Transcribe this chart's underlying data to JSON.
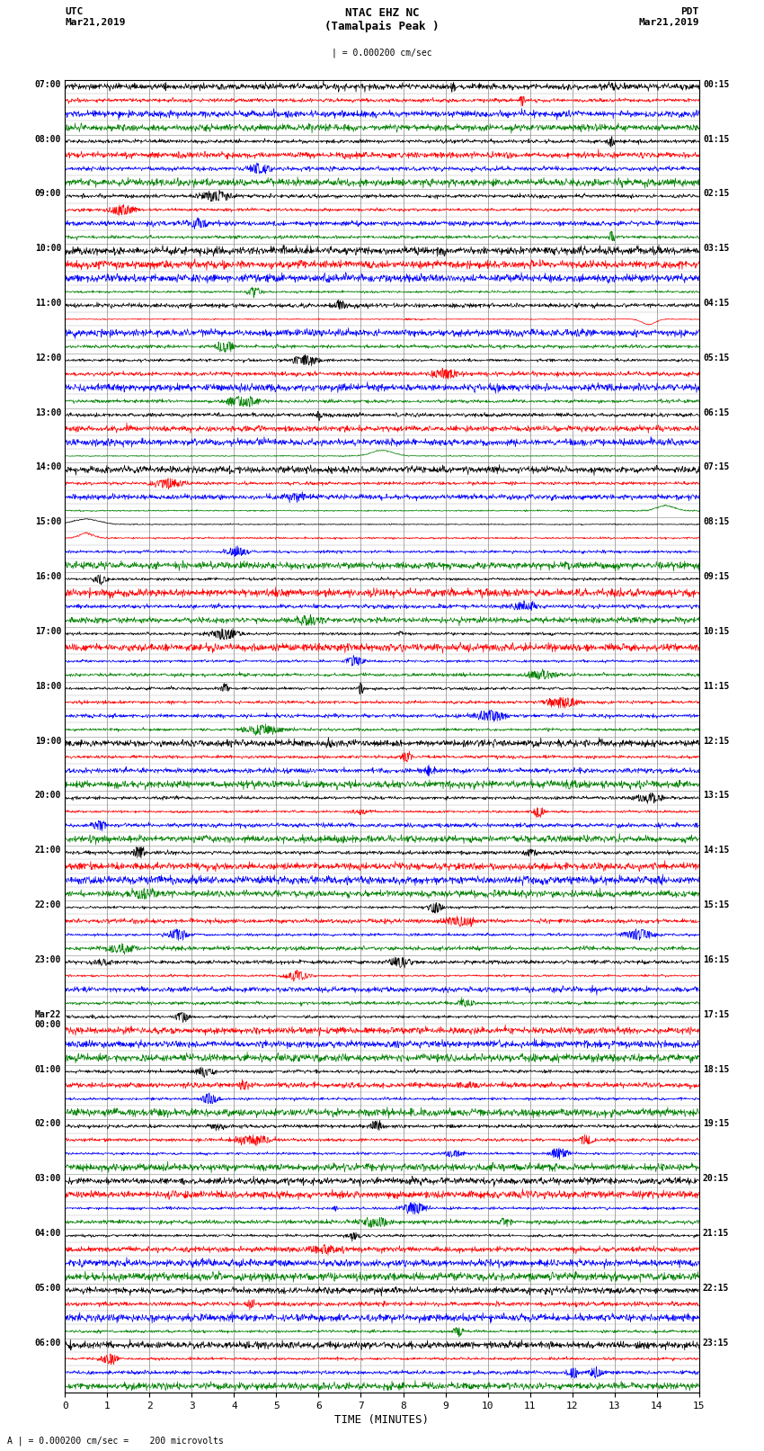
{
  "title_line1": "NTAC EHZ NC",
  "title_line2": "(Tamalpais Peak )",
  "scale_label": "| = 0.000200 cm/sec",
  "left_header_line1": "UTC",
  "left_header_line2": "Mar21,2019",
  "right_header_line1": "PDT",
  "right_header_line2": "Mar21,2019",
  "bottom_label": "TIME (MINUTES)",
  "bottom_note": "A | = 0.000200 cm/sec =    200 microvolts",
  "utc_labels": [
    "07:00",
    "08:00",
    "09:00",
    "10:00",
    "11:00",
    "12:00",
    "13:00",
    "14:00",
    "15:00",
    "16:00",
    "17:00",
    "18:00",
    "19:00",
    "20:00",
    "21:00",
    "22:00",
    "23:00",
    "Mar22\n00:00",
    "01:00",
    "02:00",
    "03:00",
    "04:00",
    "05:00",
    "06:00"
  ],
  "pdt_labels": [
    "00:15",
    "01:15",
    "02:15",
    "03:15",
    "04:15",
    "05:15",
    "06:15",
    "07:15",
    "08:15",
    "09:15",
    "10:15",
    "11:15",
    "12:15",
    "13:15",
    "14:15",
    "15:15",
    "16:15",
    "17:15",
    "18:15",
    "19:15",
    "20:15",
    "21:15",
    "22:15",
    "23:15"
  ],
  "n_hours": 24,
  "traces_per_hour": 4,
  "colors": [
    "black",
    "red",
    "blue",
    "green"
  ],
  "bg_color": "white",
  "xmin": 0,
  "xmax": 15,
  "xticks": [
    0,
    1,
    2,
    3,
    4,
    5,
    6,
    7,
    8,
    9,
    10,
    11,
    12,
    13,
    14,
    15
  ],
  "grid_color": "#888888",
  "seed": 12345,
  "n_samples": 1500
}
